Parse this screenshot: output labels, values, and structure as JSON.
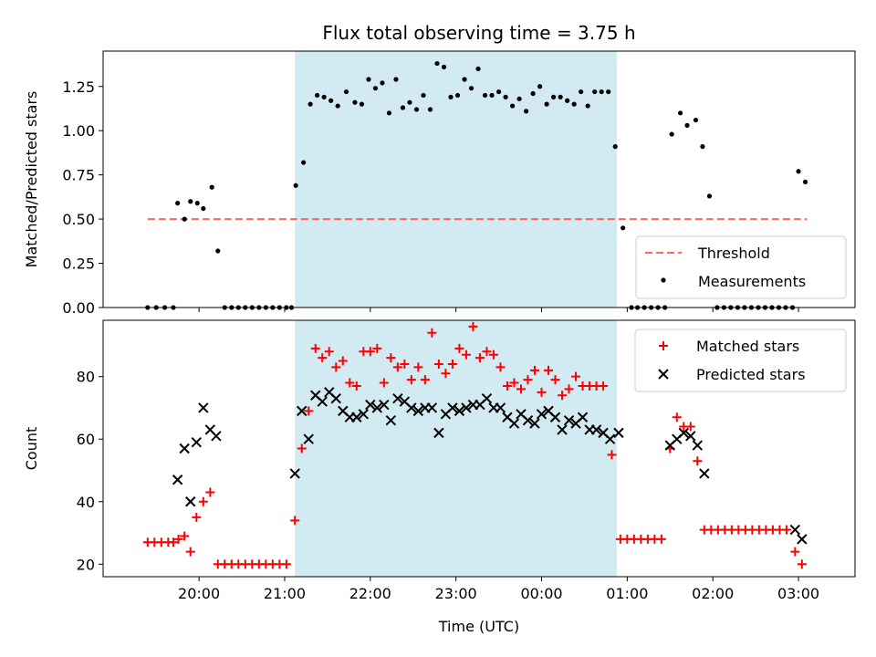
{
  "colors": {
    "shade": "#add8e6",
    "threshold": "#ff6666",
    "measurement": "#000000",
    "matched": "#ff0000",
    "predicted": "#000000"
  },
  "chart_data": [
    {
      "type": "scatter",
      "title": "Flux total observing time = 3.75 h",
      "xlabel": "",
      "ylabel": "Matched/Predicted stars",
      "x_unit": "hours (UTC), values past 24 are after midnight",
      "xlim": [
        18.88,
        27.66
      ],
      "ylim": [
        0,
        1.45
      ],
      "yticks": [
        0.0,
        0.25,
        0.5,
        0.75,
        1.0,
        1.25
      ],
      "ytick_labels": [
        "0.00",
        "0.25",
        "0.50",
        "0.75",
        "1.00",
        "1.25"
      ],
      "shaded_interval": [
        21.12,
        24.88
      ],
      "legend_position": "lower-right",
      "threshold": {
        "name": "Threshold",
        "x": [
          19.4,
          27.1
        ],
        "y": 0.5
      },
      "series": [
        {
          "name": "Measurements",
          "marker": "dot",
          "points": [
            [
              19.4,
              0
            ],
            [
              19.5,
              0
            ],
            [
              19.6,
              0
            ],
            [
              19.7,
              0
            ],
            [
              19.75,
              0.59
            ],
            [
              19.83,
              0.5
            ],
            [
              19.9,
              0.6
            ],
            [
              19.98,
              0.59
            ],
            [
              20.05,
              0.56
            ],
            [
              20.15,
              0.68
            ],
            [
              20.22,
              0.32
            ],
            [
              20.3,
              0
            ],
            [
              20.38,
              0
            ],
            [
              20.46,
              0
            ],
            [
              20.54,
              0
            ],
            [
              20.62,
              0
            ],
            [
              20.7,
              0
            ],
            [
              20.78,
              0
            ],
            [
              20.86,
              0
            ],
            [
              20.94,
              0
            ],
            [
              21.02,
              0
            ],
            [
              21.08,
              0
            ],
            [
              21.13,
              0.69
            ],
            [
              21.22,
              0.82
            ],
            [
              21.3,
              1.15
            ],
            [
              21.38,
              1.2
            ],
            [
              21.46,
              1.19
            ],
            [
              21.54,
              1.17
            ],
            [
              21.62,
              1.14
            ],
            [
              21.72,
              1.22
            ],
            [
              21.82,
              1.16
            ],
            [
              21.9,
              1.15
            ],
            [
              21.98,
              1.29
            ],
            [
              22.06,
              1.24
            ],
            [
              22.14,
              1.27
            ],
            [
              22.22,
              1.1
            ],
            [
              22.3,
              1.29
            ],
            [
              22.38,
              1.13
            ],
            [
              22.46,
              1.16
            ],
            [
              22.54,
              1.12
            ],
            [
              22.62,
              1.2
            ],
            [
              22.7,
              1.12
            ],
            [
              22.78,
              1.38
            ],
            [
              22.86,
              1.36
            ],
            [
              22.94,
              1.19
            ],
            [
              23.02,
              1.2
            ],
            [
              23.1,
              1.29
            ],
            [
              23.18,
              1.24
            ],
            [
              23.26,
              1.35
            ],
            [
              23.34,
              1.2
            ],
            [
              23.42,
              1.2
            ],
            [
              23.5,
              1.22
            ],
            [
              23.58,
              1.19
            ],
            [
              23.66,
              1.14
            ],
            [
              23.74,
              1.18
            ],
            [
              23.82,
              1.11
            ],
            [
              23.9,
              1.21
            ],
            [
              23.98,
              1.25
            ],
            [
              24.06,
              1.15
            ],
            [
              24.14,
              1.19
            ],
            [
              24.22,
              1.19
            ],
            [
              24.3,
              1.17
            ],
            [
              24.38,
              1.15
            ],
            [
              24.46,
              1.22
            ],
            [
              24.54,
              1.14
            ],
            [
              24.62,
              1.22
            ],
            [
              24.7,
              1.22
            ],
            [
              24.78,
              1.22
            ],
            [
              24.86,
              0.91
            ],
            [
              24.95,
              0.45
            ],
            [
              25.05,
              0
            ],
            [
              25.12,
              0
            ],
            [
              25.2,
              0
            ],
            [
              25.28,
              0
            ],
            [
              25.36,
              0
            ],
            [
              25.44,
              0
            ],
            [
              25.52,
              0.98
            ],
            [
              25.62,
              1.1
            ],
            [
              25.7,
              1.03
            ],
            [
              25.8,
              1.06
            ],
            [
              25.88,
              0.91
            ],
            [
              25.96,
              0.63
            ],
            [
              26.05,
              0
            ],
            [
              26.13,
              0
            ],
            [
              26.21,
              0
            ],
            [
              26.29,
              0
            ],
            [
              26.37,
              0
            ],
            [
              26.45,
              0
            ],
            [
              26.53,
              0
            ],
            [
              26.61,
              0
            ],
            [
              26.69,
              0
            ],
            [
              26.77,
              0
            ],
            [
              26.85,
              0
            ],
            [
              26.93,
              0
            ],
            [
              27.0,
              0.77
            ],
            [
              27.08,
              0.71
            ]
          ]
        }
      ]
    },
    {
      "type": "scatter",
      "title": "",
      "xlabel": "Time (UTC)",
      "ylabel": "Count",
      "x_unit": "hours (UTC), values past 24 are after midnight",
      "xlim": [
        18.88,
        27.66
      ],
      "ylim": [
        16,
        98
      ],
      "yticks": [
        20,
        40,
        60,
        80
      ],
      "ytick_labels": [
        "20",
        "40",
        "60",
        "80"
      ],
      "xticks": [
        20,
        21,
        22,
        23,
        24,
        25,
        26,
        27
      ],
      "xtick_labels": [
        "20:00",
        "21:00",
        "22:00",
        "23:00",
        "00:00",
        "01:00",
        "02:00",
        "03:00"
      ],
      "shaded_interval": [
        21.12,
        24.88
      ],
      "legend_position": "top-right",
      "series": [
        {
          "name": "Matched stars",
          "marker": "plus",
          "points": [
            [
              19.4,
              27
            ],
            [
              19.48,
              27
            ],
            [
              19.56,
              27
            ],
            [
              19.64,
              27
            ],
            [
              19.7,
              27
            ],
            [
              19.76,
              28
            ],
            [
              19.83,
              29
            ],
            [
              19.9,
              24
            ],
            [
              19.97,
              35
            ],
            [
              20.05,
              40
            ],
            [
              20.13,
              43
            ],
            [
              20.22,
              20
            ],
            [
              20.3,
              20
            ],
            [
              20.38,
              20
            ],
            [
              20.46,
              20
            ],
            [
              20.54,
              20
            ],
            [
              20.62,
              20
            ],
            [
              20.7,
              20
            ],
            [
              20.78,
              20
            ],
            [
              20.86,
              20
            ],
            [
              20.94,
              20
            ],
            [
              21.02,
              20
            ],
            [
              21.12,
              34
            ],
            [
              21.2,
              57
            ],
            [
              21.28,
              69
            ],
            [
              21.36,
              89
            ],
            [
              21.44,
              86
            ],
            [
              21.52,
              88
            ],
            [
              21.6,
              83
            ],
            [
              21.68,
              85
            ],
            [
              21.76,
              78
            ],
            [
              21.84,
              77
            ],
            [
              21.92,
              88
            ],
            [
              22.0,
              88
            ],
            [
              22.08,
              89
            ],
            [
              22.16,
              78
            ],
            [
              22.24,
              86
            ],
            [
              22.32,
              83
            ],
            [
              22.4,
              84
            ],
            [
              22.48,
              79
            ],
            [
              22.56,
              83
            ],
            [
              22.64,
              79
            ],
            [
              22.72,
              94
            ],
            [
              22.8,
              84
            ],
            [
              22.88,
              81
            ],
            [
              22.96,
              84
            ],
            [
              23.04,
              89
            ],
            [
              23.12,
              87
            ],
            [
              23.2,
              96
            ],
            [
              23.28,
              86
            ],
            [
              23.36,
              88
            ],
            [
              23.44,
              87
            ],
            [
              23.52,
              83
            ],
            [
              23.6,
              77
            ],
            [
              23.68,
              78
            ],
            [
              23.76,
              76
            ],
            [
              23.84,
              79
            ],
            [
              23.92,
              82
            ],
            [
              24.0,
              75
            ],
            [
              24.08,
              82
            ],
            [
              24.16,
              79
            ],
            [
              24.24,
              74
            ],
            [
              24.32,
              76
            ],
            [
              24.4,
              80
            ],
            [
              24.48,
              77
            ],
            [
              24.56,
              77
            ],
            [
              24.64,
              77
            ],
            [
              24.72,
              77
            ],
            [
              24.82,
              55
            ],
            [
              24.92,
              28
            ],
            [
              25.0,
              28
            ],
            [
              25.08,
              28
            ],
            [
              25.16,
              28
            ],
            [
              25.24,
              28
            ],
            [
              25.32,
              28
            ],
            [
              25.4,
              28
            ],
            [
              25.5,
              57
            ],
            [
              25.58,
              67
            ],
            [
              25.66,
              64
            ],
            [
              25.74,
              64
            ],
            [
              25.82,
              53
            ],
            [
              25.9,
              31
            ],
            [
              25.98,
              31
            ],
            [
              26.06,
              31
            ],
            [
              26.14,
              31
            ],
            [
              26.22,
              31
            ],
            [
              26.3,
              31
            ],
            [
              26.38,
              31
            ],
            [
              26.46,
              31
            ],
            [
              26.54,
              31
            ],
            [
              26.62,
              31
            ],
            [
              26.7,
              31
            ],
            [
              26.78,
              31
            ],
            [
              26.86,
              31
            ],
            [
              26.96,
              24
            ],
            [
              27.04,
              20
            ]
          ]
        },
        {
          "name": "Predicted stars",
          "marker": "x",
          "points": [
            [
              19.75,
              47
            ],
            [
              19.83,
              57
            ],
            [
              19.9,
              40
            ],
            [
              19.97,
              59
            ],
            [
              20.05,
              70
            ],
            [
              20.13,
              63
            ],
            [
              20.2,
              61
            ],
            [
              21.12,
              49
            ],
            [
              21.2,
              69
            ],
            [
              21.28,
              60
            ],
            [
              21.36,
              74
            ],
            [
              21.44,
              72
            ],
            [
              21.52,
              75
            ],
            [
              21.6,
              73
            ],
            [
              21.68,
              69
            ],
            [
              21.76,
              67
            ],
            [
              21.84,
              67
            ],
            [
              21.92,
              68
            ],
            [
              22.0,
              71
            ],
            [
              22.08,
              70
            ],
            [
              22.16,
              71
            ],
            [
              22.24,
              66
            ],
            [
              22.32,
              73
            ],
            [
              22.4,
              72
            ],
            [
              22.48,
              70
            ],
            [
              22.56,
              69
            ],
            [
              22.64,
              70
            ],
            [
              22.72,
              70
            ],
            [
              22.8,
              62
            ],
            [
              22.88,
              68
            ],
            [
              22.96,
              70
            ],
            [
              23.04,
              69
            ],
            [
              23.12,
              70
            ],
            [
              23.2,
              71
            ],
            [
              23.28,
              71
            ],
            [
              23.36,
              73
            ],
            [
              23.44,
              70
            ],
            [
              23.52,
              70
            ],
            [
              23.6,
              67
            ],
            [
              23.68,
              65
            ],
            [
              23.76,
              68
            ],
            [
              23.84,
              66
            ],
            [
              23.92,
              65
            ],
            [
              24.0,
              68
            ],
            [
              24.08,
              69
            ],
            [
              24.16,
              67
            ],
            [
              24.24,
              63
            ],
            [
              24.32,
              66
            ],
            [
              24.4,
              65
            ],
            [
              24.48,
              67
            ],
            [
              24.56,
              63
            ],
            [
              24.64,
              63
            ],
            [
              24.72,
              62
            ],
            [
              24.8,
              60
            ],
            [
              24.9,
              62
            ],
            [
              25.5,
              58
            ],
            [
              25.58,
              60
            ],
            [
              25.66,
              62
            ],
            [
              25.74,
              61
            ],
            [
              25.82,
              58
            ],
            [
              25.9,
              49
            ],
            [
              26.96,
              31
            ],
            [
              27.04,
              28
            ]
          ]
        }
      ]
    }
  ]
}
